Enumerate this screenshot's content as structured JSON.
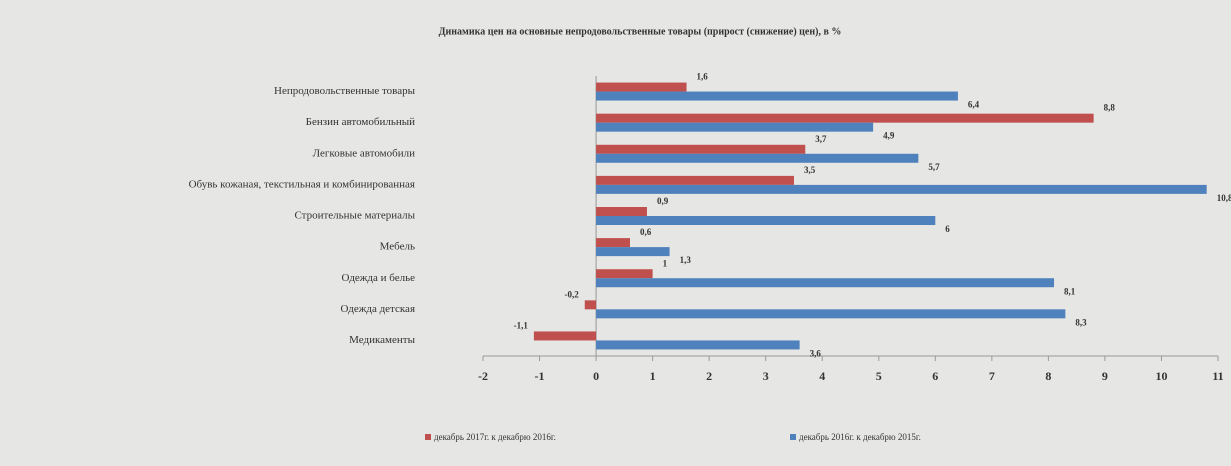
{
  "chart_data": {
    "type": "hbar",
    "title": "Динамика цен на основные непродовольственные товары (прирост (снижение) цен), в %",
    "categories": [
      "Непродовольственные товары",
      "Бензин автомобильный",
      "Легковые автомобили",
      "Обувь кожаная, текстильная и комбинированная",
      "Строительные материалы",
      "Мебель",
      "Одежда и белье",
      "Одежда детская",
      "Медикаменты"
    ],
    "series": [
      {
        "name": "декабрь 2017г. к декабрю 2016г.",
        "color": "#c0504d",
        "values": [
          1.6,
          8.8,
          3.7,
          3.5,
          0.9,
          0.6,
          1,
          -0.2,
          -1.1
        ],
        "value_labels": [
          "1,6",
          "8,8",
          "3,7",
          "3,5",
          "0,9",
          "0,6",
          "1",
          "-0,2",
          "-1,1"
        ]
      },
      {
        "name": "декабрь 2016г. к декабрю 2015г.",
        "color": "#4f81bd",
        "values": [
          6.4,
          4.9,
          5.7,
          10.8,
          6,
          1.3,
          8.1,
          8.3,
          3.6
        ],
        "value_labels": [
          "6,4",
          "4,9",
          "5,7",
          "10,8",
          "6",
          "1,3",
          "8,1",
          "8,3",
          "3,6"
        ]
      }
    ],
    "xlim": [
      -2,
      11
    ],
    "xticks": [
      -2,
      -1,
      0,
      1,
      2,
      3,
      4,
      5,
      6,
      7,
      8,
      9,
      10,
      11
    ]
  }
}
